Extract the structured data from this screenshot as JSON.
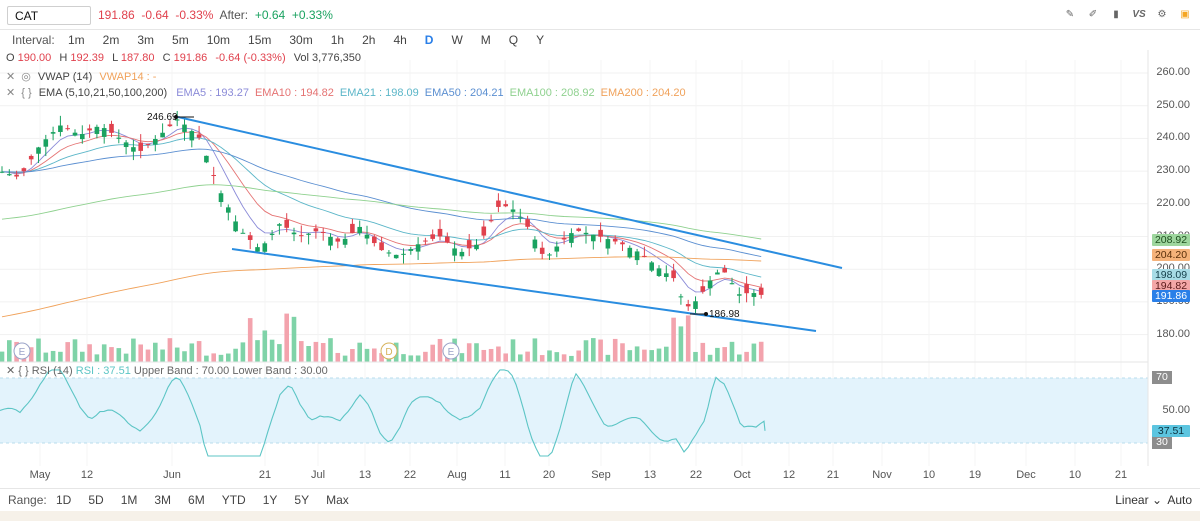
{
  "topbar": {
    "symbol": "CAT",
    "last": "191.86",
    "change": "-0.64",
    "change_pct": "-0.33%",
    "after_label": "After:",
    "after_change": "+0.64",
    "after_pct": "+0.33%",
    "tools": [
      {
        "name": "pencil-icon",
        "glyph": "✎"
      },
      {
        "name": "drawing-tools-icon",
        "glyph": "✐"
      },
      {
        "name": "candle-type-icon",
        "glyph": "▮"
      },
      {
        "name": "compare-icon",
        "glyph": "VS"
      },
      {
        "name": "settings-icon",
        "glyph": "⚙"
      },
      {
        "name": "calendar-icon",
        "glyph": "▣"
      }
    ]
  },
  "interval": {
    "label": "Interval:",
    "options": [
      "1m",
      "2m",
      "3m",
      "5m",
      "10m",
      "15m",
      "30m",
      "1h",
      "2h",
      "4h",
      "D",
      "W",
      "M",
      "Q",
      "Y"
    ],
    "active": "D"
  },
  "ohlc": {
    "o_label": "O",
    "o": "190.00",
    "h_label": "H",
    "h": "192.39",
    "l_label": "L",
    "l": "187.80",
    "c_label": "C",
    "c": "191.86",
    "chg": "-0.64 (-0.33%)",
    "vol_label": "Vol",
    "vol": "3,776,350"
  },
  "vwap_legend": {
    "name": "VWAP (14)",
    "value": "VWAP14 : -"
  },
  "ema_legend": {
    "name": "EMA (5,10,21,50,100,200)",
    "items": [
      {
        "text": "EMA5 : 193.27",
        "color": "#8b8bd8"
      },
      {
        "text": "EMA10 : 194.82",
        "color": "#e57373"
      },
      {
        "text": "EMA21 : 198.09",
        "color": "#5bb6c8"
      },
      {
        "text": "EMA50 : 204.21",
        "color": "#5b8fd1"
      },
      {
        "text": "EMA100 : 208.92",
        "color": "#8fd18f"
      },
      {
        "text": "EMA200 : 204.20",
        "color": "#f0a25b"
      }
    ]
  },
  "price_axis": [
    "260.00",
    "250.00",
    "240.00",
    "230.00",
    "220.00",
    "210.00",
    "200.00",
    "190.00",
    "180.00"
  ],
  "price_tags": [
    {
      "text": "208.92",
      "bg": "#9ed69e",
      "fg": "#1d4d1d"
    },
    {
      "text": "204.20",
      "bg": "#f5b27a",
      "fg": "#5a2f0a"
    },
    {
      "text": "198.09",
      "bg": "#a7dce6",
      "fg": "#17424d"
    },
    {
      "text": "194.82",
      "bg": "#f4a7a7",
      "fg": "#5a1a1a"
    },
    {
      "text": "191.86",
      "bg": "#2a7fe8",
      "fg": "#ffffff"
    }
  ],
  "annotations": {
    "high": "246.69",
    "low": "186.98"
  },
  "events": [
    "E",
    "D",
    "E"
  ],
  "rsi": {
    "name": "RSI (14)",
    "value": "RSI : 37.51",
    "upper": "Upper Band : 70.00",
    "lower": "Lower Band : 30.00",
    "axis": [
      "70",
      "50.00",
      "30"
    ],
    "tag": "37.51"
  },
  "x_axis": [
    "May",
    "12",
    "Jun",
    "21",
    "Jul",
    "13",
    "22",
    "Aug",
    "11",
    "20",
    "Sep",
    "13",
    "22",
    "Oct",
    "12",
    "21",
    "Nov",
    "10",
    "19",
    "Dec",
    "10",
    "21"
  ],
  "range": {
    "label": "Range:",
    "options": [
      "1D",
      "5D",
      "1M",
      "3M",
      "6M",
      "YTD",
      "1Y",
      "5Y",
      "Max"
    ],
    "scale": "Linear",
    "auto": "Auto"
  },
  "colors": {
    "up": "#1aa260",
    "down": "#e0414d",
    "trend": "#2a8de0",
    "rsi_band": "#e3f3fc",
    "rsi_line": "#5cc5c5"
  }
}
